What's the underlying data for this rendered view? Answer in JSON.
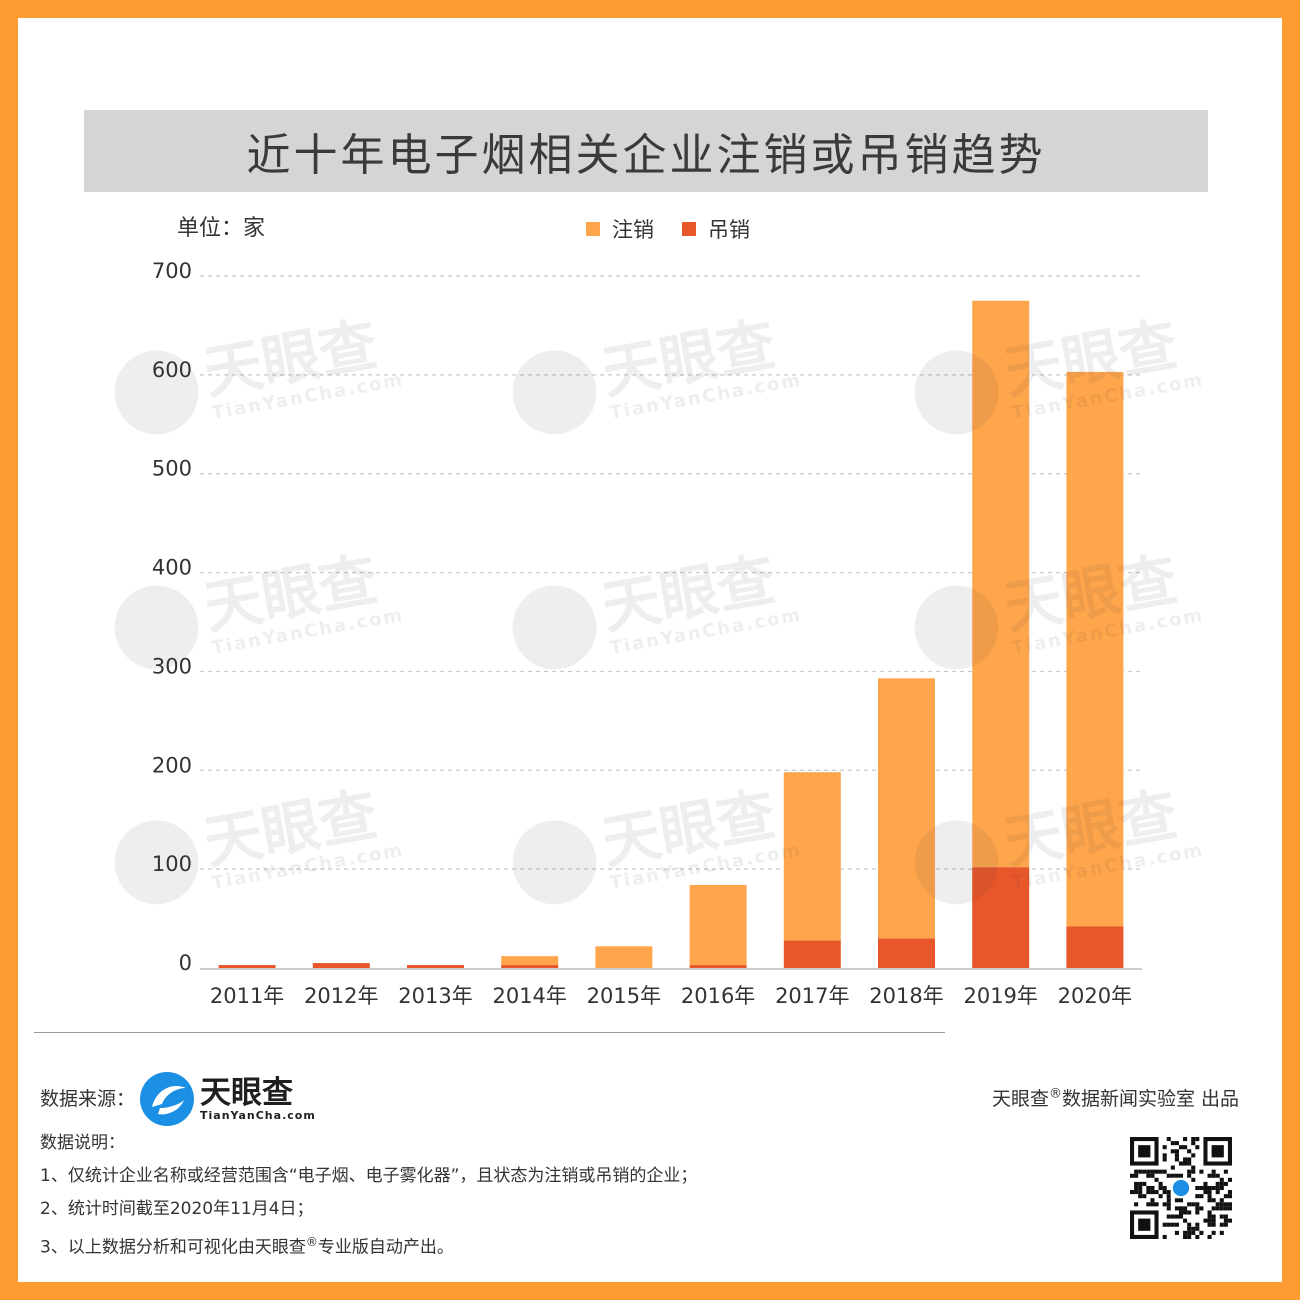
{
  "title": "近十年电子烟相关企业注销或吊销趋势",
  "unit_label": "单位：家",
  "legend": [
    {
      "label": "注销",
      "color": "#FFA64D"
    },
    {
      "label": "吊销",
      "color": "#E8572A"
    }
  ],
  "watermark": {
    "brand": "天眼查",
    "url": "TianYanCha.com"
  },
  "colors": {
    "frame": "#FF9B33",
    "title_bar": "#D5D5D5",
    "cancel": "#FFA64D",
    "revoke": "#E8572A",
    "logo_blue": "#1B8FE3"
  },
  "chart_data": {
    "type": "bar",
    "stacked": true,
    "title": "近十年电子烟相关企业注销或吊销趋势",
    "ylabel": "单位：家",
    "ylim": [
      0,
      700
    ],
    "yticks": [
      0,
      100,
      200,
      300,
      400,
      500,
      600,
      700
    ],
    "grid": true,
    "legend_position": "top-center",
    "categories": [
      "2011年",
      "2012年",
      "2013年",
      "2014年",
      "2015年",
      "2016年",
      "2017年",
      "2018年",
      "2019年",
      "2020年"
    ],
    "series": [
      {
        "name": "吊销",
        "values": [
          3,
          5,
          3,
          3,
          0,
          3,
          28,
          30,
          102,
          42
        ]
      },
      {
        "name": "注销",
        "values": [
          0,
          0,
          0,
          9,
          22,
          81,
          170,
          263,
          573,
          561
        ]
      }
    ]
  },
  "footer": {
    "source_label": "数据来源：",
    "logo_brand": "天眼查",
    "logo_url": "TianYanCha.com",
    "publisher": "天眼查",
    "publisher_mark": "®",
    "publisher_rest": "数据新闻实验室 出品",
    "notes_title": "数据说明：",
    "note1": "1、仅统计企业名称或经营范围含“电子烟、电子雾化器”，且状态为注销或吊销的企业；",
    "note2": "2、统计时间截至2020年11月4日；",
    "note3_a": "3、以上数据分析和可视化由天眼查",
    "note3_mark": "®",
    "note3_b": "专业版自动产出。"
  }
}
